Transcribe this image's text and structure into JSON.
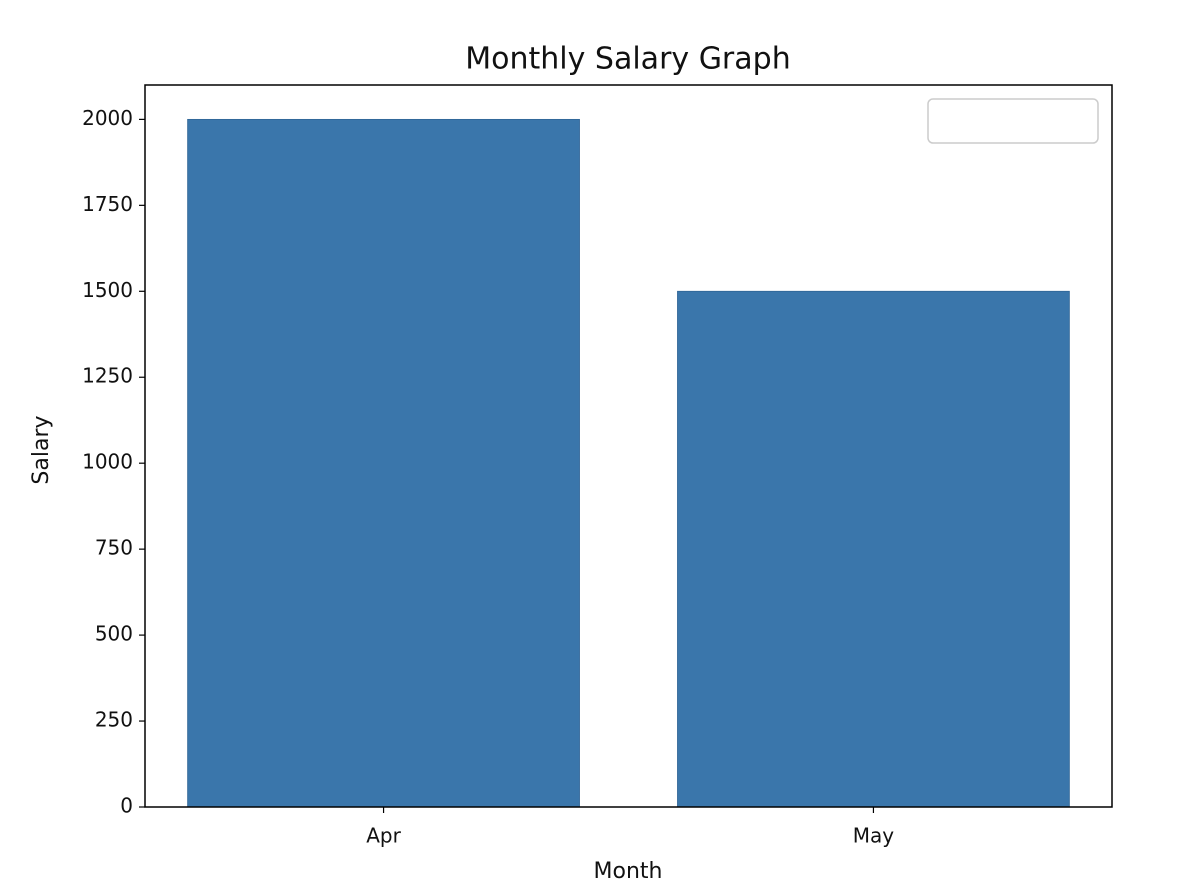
{
  "chart_data": {
    "type": "bar",
    "title": "Monthly Salary Graph",
    "x_label": "Month",
    "y_label": "Salary",
    "categories": [
      "Apr",
      "May"
    ],
    "values": [
      2000,
      1500
    ],
    "color": "#3a76ab",
    "ylim": [
      0,
      2100
    ],
    "yticks": [
      0,
      250,
      500,
      750,
      1000,
      1250,
      1500,
      1750,
      2000
    ],
    "grid": false
  }
}
